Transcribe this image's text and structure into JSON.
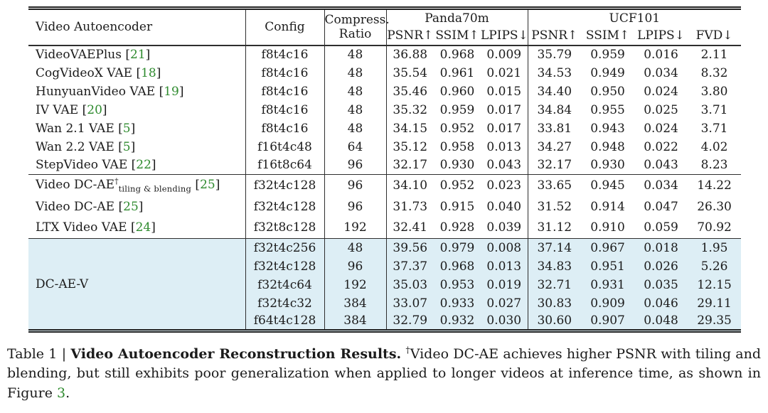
{
  "colors": {
    "citation_green": "#2f8b2f",
    "highlight_blue": "#ddeef5"
  },
  "table": {
    "header": {
      "col1": "Video Autoencoder",
      "col2": "Config",
      "col3_line1": "Compress.",
      "col3_line2": "Ratio",
      "group_panda": {
        "label": "Panda70m",
        "metrics": [
          "PSNR↑",
          "SSIM↑",
          "LPIPS↓"
        ]
      },
      "group_ucf": {
        "label": "UCF101",
        "metrics": [
          "PSNR↑",
          "SSIM↑",
          "LPIPS↓",
          "FVD↓"
        ]
      }
    },
    "sections": [
      {
        "rows": [
          {
            "name": "VideoVAEPlus",
            "cite": "21",
            "config": "f8t4c16",
            "ratio": "48",
            "panda": [
              "36.88",
              "0.968",
              "0.009"
            ],
            "ucf": [
              "35.79",
              "0.959",
              "0.016",
              "2.11"
            ]
          },
          {
            "name": "CogVideoX VAE",
            "cite": "18",
            "config": "f8t4c16",
            "ratio": "48",
            "panda": [
              "35.54",
              "0.961",
              "0.021"
            ],
            "ucf": [
              "34.53",
              "0.949",
              "0.034",
              "8.32"
            ]
          },
          {
            "name": "HunyuanVideo VAE",
            "cite": "19",
            "config": "f8t4c16",
            "ratio": "48",
            "panda": [
              "35.46",
              "0.960",
              "0.015"
            ],
            "ucf": [
              "34.40",
              "0.950",
              "0.024",
              "3.80"
            ]
          },
          {
            "name": "IV VAE",
            "cite": "20",
            "config": "f8t4c16",
            "ratio": "48",
            "panda": [
              "35.32",
              "0.959",
              "0.017"
            ],
            "ucf": [
              "34.84",
              "0.955",
              "0.025",
              "3.71"
            ]
          },
          {
            "name": "Wan 2.1 VAE",
            "cite": "5",
            "config": "f8t4c16",
            "ratio": "48",
            "panda": [
              "34.15",
              "0.952",
              "0.017"
            ],
            "ucf": [
              "33.81",
              "0.943",
              "0.024",
              "3.71"
            ]
          },
          {
            "name": "Wan 2.2 VAE",
            "cite": "5",
            "config": "f16t4c48",
            "ratio": "64",
            "panda": [
              "35.12",
              "0.958",
              "0.013"
            ],
            "ucf": [
              "34.27",
              "0.948",
              "0.022",
              "4.02"
            ]
          },
          {
            "name": "StepVideo VAE",
            "cite": "22",
            "config": "f16t8c64",
            "ratio": "96",
            "panda": [
              "32.17",
              "0.930",
              "0.043"
            ],
            "ucf": [
              "32.17",
              "0.930",
              "0.043",
              "8.23"
            ]
          }
        ]
      },
      {
        "rows": [
          {
            "name": "Video DC-AE",
            "sup": "†",
            "sub": "tiling & blending",
            "cite": "25",
            "config": "f32t4c128",
            "ratio": "96",
            "panda": [
              "34.10",
              "0.952",
              "0.023"
            ],
            "ucf": [
              "33.65",
              "0.945",
              "0.034",
              "14.22"
            ]
          },
          {
            "name": "Video DC-AE",
            "cite": "25",
            "config": "f32t4c128",
            "ratio": "96",
            "panda": [
              "31.73",
              "0.915",
              "0.040"
            ],
            "ucf": [
              "31.52",
              "0.914",
              "0.047",
              "26.30"
            ]
          },
          {
            "name": "LTX Video VAE",
            "cite": "24",
            "config": "f32t8c128",
            "ratio": "192",
            "panda": [
              "32.41",
              "0.928",
              "0.039"
            ],
            "ucf": [
              "31.12",
              "0.910",
              "0.059",
              "70.92"
            ]
          }
        ]
      },
      {
        "highlight": true,
        "group_name": "DC-AE-V",
        "rows": [
          {
            "config": "f32t4c256",
            "ratio": "48",
            "panda": [
              "39.56",
              "0.979",
              "0.008"
            ],
            "ucf": [
              "37.14",
              "0.967",
              "0.018",
              "1.95"
            ]
          },
          {
            "config": "f32t4c128",
            "ratio": "96",
            "panda": [
              "37.37",
              "0.968",
              "0.013"
            ],
            "ucf": [
              "34.83",
              "0.951",
              "0.026",
              "5.26"
            ]
          },
          {
            "config": "f32t4c64",
            "ratio": "192",
            "panda": [
              "35.03",
              "0.953",
              "0.019"
            ],
            "ucf": [
              "32.71",
              "0.931",
              "0.035",
              "12.15"
            ]
          },
          {
            "config": "f32t4c32",
            "ratio": "384",
            "panda": [
              "33.07",
              "0.933",
              "0.027"
            ],
            "ucf": [
              "30.83",
              "0.909",
              "0.046",
              "29.11"
            ]
          },
          {
            "config": "f64t4c128",
            "ratio": "384",
            "panda": [
              "32.79",
              "0.932",
              "0.030"
            ],
            "ucf": [
              "30.60",
              "0.907",
              "0.048",
              "29.35"
            ]
          }
        ]
      }
    ]
  },
  "caption": {
    "label": "Table 1",
    "separator": "|",
    "title": "Video Autoencoder Reconstruction Results.",
    "dagger": "†",
    "body": "Video DC-AE achieves higher PSNR with tiling and blending, but still exhibits poor generalization when applied to longer videos at inference time, as shown in Figure",
    "figure_ref": "3",
    "period": "."
  }
}
